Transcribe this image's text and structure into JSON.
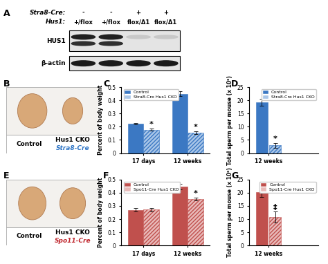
{
  "blot": {
    "panel": "A",
    "rows": [
      {
        "label": "Stra8-Cre:",
        "lanes": [
          "-",
          "-",
          "+",
          "+"
        ]
      },
      {
        "label": "Hus1:",
        "lanes": [
          "+/flox",
          "+/flox",
          "flox/Δ1",
          "flox/Δ1"
        ]
      }
    ],
    "bands": [
      "HUS1",
      "β-actin"
    ]
  },
  "photos": [
    {
      "panel": "B",
      "left": "Control",
      "right": "Hus1 CKO",
      "cre": "Stra8-Cre",
      "color": "#2e75c6"
    },
    {
      "panel": "E",
      "left": "Control",
      "right": "Hus1 CKO",
      "cre": "Spo11-Cre",
      "color": "#c0262d"
    }
  ],
  "chart_data": [
    {
      "panel": "C",
      "type": "bar",
      "categories": [
        "17 days",
        "12 weeks"
      ],
      "y_label": "Percent of body weight",
      "ylim": [
        0,
        0.5
      ],
      "yticks": [
        0,
        0.1,
        0.2,
        0.3,
        0.4,
        0.5
      ],
      "legend": "upper left",
      "series": [
        {
          "name": "Control",
          "color": "#3b78c3",
          "values": [
            0.225,
            0.45
          ],
          "errors": [
            0.005,
            0.02
          ]
        },
        {
          "name": "Stra8-Cre Hus1 CKO",
          "color": "#a9c6e8",
          "values": [
            0.178,
            0.155
          ],
          "errors": [
            0.008,
            0.012
          ]
        }
      ],
      "annotations": [
        {
          "text": "*",
          "category": "17 days",
          "series": "Stra8-Cre Hus1 CKO"
        },
        {
          "text": "*",
          "category": "12 weeks",
          "series": "Stra8-Cre Hus1 CKO"
        }
      ]
    },
    {
      "panel": "D",
      "type": "bar",
      "categories": [
        "12 weeks"
      ],
      "y_label": "Total sperm per mouse (x 10⁶)",
      "ylim": [
        0,
        25
      ],
      "yticks": [
        0,
        5,
        10,
        15,
        20,
        25
      ],
      "legend": "upper right",
      "series": [
        {
          "name": "Control",
          "color": "#3b78c3",
          "values": [
            19.3
          ],
          "errors": [
            1.3
          ]
        },
        {
          "name": "Stra8-Cre Hus1 CKO",
          "color": "#a9c6e8",
          "values": [
            3.0
          ],
          "errors": [
            0.9
          ]
        }
      ],
      "annotations": [
        {
          "text": "*",
          "category": "12 weeks",
          "series": "Stra8-Cre Hus1 CKO"
        }
      ]
    },
    {
      "panel": "F",
      "type": "bar",
      "categories": [
        "17 days",
        "12 weeks"
      ],
      "y_label": "Percent of body weight",
      "ylim": [
        0,
        0.5
      ],
      "yticks": [
        0,
        0.1,
        0.2,
        0.3,
        0.4,
        0.5
      ],
      "legend": "upper left",
      "series": [
        {
          "name": "Control",
          "color": "#c0504d",
          "values": [
            0.27,
            0.445
          ],
          "errors": [
            0.012,
            0.022
          ]
        },
        {
          "name": "Spo11-Cre Hus1 CKO",
          "color": "#e8b9b8",
          "values": [
            0.272,
            0.352
          ],
          "errors": [
            0.012,
            0.012
          ]
        }
      ],
      "annotations": [
        {
          "text": "*",
          "category": "12 weeks",
          "series": "Spo11-Cre Hus1 CKO"
        }
      ]
    },
    {
      "panel": "G",
      "type": "bar",
      "categories": [
        "12 weeks"
      ],
      "y_label": "Total sperm per mouse (x 10⁶)",
      "ylim": [
        0,
        25
      ],
      "yticks": [
        0,
        5,
        10,
        15,
        20,
        25
      ],
      "legend": "upper right",
      "series": [
        {
          "name": "Control",
          "color": "#c0504d",
          "values": [
            20.3
          ],
          "errors": [
            2.0
          ]
        },
        {
          "name": "Spo11-Cre Hus1 CKO",
          "color": "#e8b9b8",
          "values": [
            10.8
          ],
          "errors": [
            2.2
          ]
        }
      ],
      "annotations": [
        {
          "text": "‡",
          "category": "12 weeks",
          "series": "Spo11-Cre Hus1 CKO"
        }
      ]
    }
  ]
}
